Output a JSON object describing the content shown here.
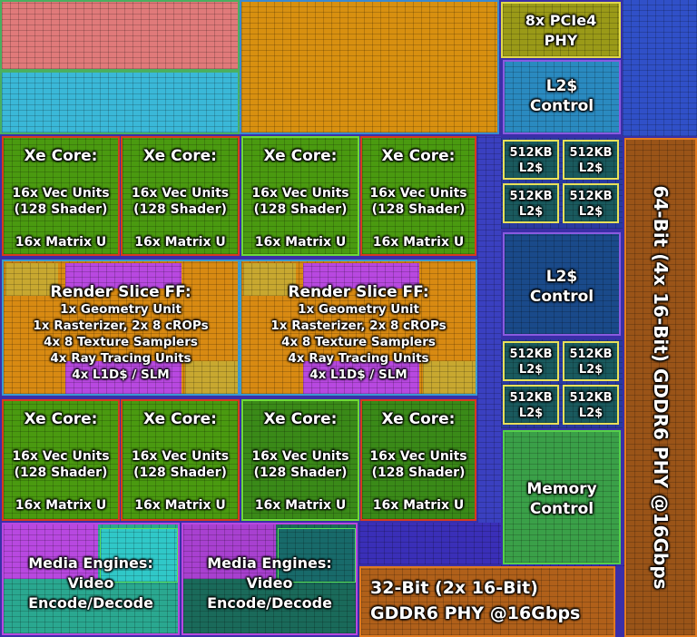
{
  "xe_cores": {
    "top": [
      {
        "title": "Xe Core:",
        "vec": "16x Vec Units",
        "shader": "(128 Shader)",
        "matrix": "16x Matrix U"
      },
      {
        "title": "Xe Core:",
        "vec": "16x Vec Units",
        "shader": "(128 Shader)",
        "matrix": "16x Matrix U"
      },
      {
        "title": "Xe Core:",
        "vec": "16x Vec Units",
        "shader": "(128 Shader)",
        "matrix": "16x Matrix U"
      },
      {
        "title": "Xe Core:",
        "vec": "16x Vec Units",
        "shader": "(128 Shader)",
        "matrix": "16x Matrix U"
      }
    ],
    "bottom": [
      {
        "title": "Xe Core:",
        "vec": "16x Vec Units",
        "shader": "(128 Shader)",
        "matrix": "16x Matrix U"
      },
      {
        "title": "Xe Core:",
        "vec": "16x Vec Units",
        "shader": "(128 Shader)",
        "matrix": "16x Matrix U"
      },
      {
        "title": "Xe Core:",
        "vec": "16x Vec Units",
        "shader": "(128 Shader)",
        "matrix": "16x Matrix U"
      },
      {
        "title": "Xe Core:",
        "vec": "16x Vec Units",
        "shader": "(128 Shader)",
        "matrix": "16x Matrix U"
      }
    ]
  },
  "render_slices": [
    {
      "title": "Render Slice FF:",
      "lines": [
        "1x Geometry Unit",
        "1x Rasterizer, 2x 8 cROPs",
        "4x 8 Texture Samplers",
        "4x Ray Tracing Units",
        "4x L1D$ / SLM"
      ]
    },
    {
      "title": "Render Slice FF:",
      "lines": [
        "1x Geometry Unit",
        "1x Rasterizer, 2x 8 cROPs",
        "4x 8 Texture Samplers",
        "4x Ray Tracing Units",
        "4x L1D$ / SLM"
      ]
    }
  ],
  "media_engines": [
    {
      "lines": [
        "Media Engines:",
        "Video",
        "Encode/Decode"
      ]
    },
    {
      "lines": [
        "Media Engines:",
        "Video",
        "Encode/Decode"
      ]
    }
  ],
  "pcie": {
    "lines": [
      "8x PCIe4",
      "PHY"
    ]
  },
  "l2_controls": [
    {
      "lines": [
        "L2$",
        "Control"
      ]
    },
    {
      "lines": [
        "L2$",
        "Control"
      ]
    }
  ],
  "l2_caches": {
    "group1": [
      {
        "size": "512KB",
        "label": "L2$"
      },
      {
        "size": "512KB",
        "label": "L2$"
      },
      {
        "size": "512KB",
        "label": "L2$"
      },
      {
        "size": "512KB",
        "label": "L2$"
      }
    ],
    "group2": [
      {
        "size": "512KB",
        "label": "L2$"
      },
      {
        "size": "512KB",
        "label": "L2$"
      },
      {
        "size": "512KB",
        "label": "L2$"
      },
      {
        "size": "512KB",
        "label": "L2$"
      }
    ]
  },
  "memory_control": {
    "lines": [
      "Memory",
      "Control"
    ]
  },
  "gddr6_bottom": {
    "lines": [
      "32-Bit (2x 16-Bit)",
      "GDDR6 PHY @16Gbps"
    ]
  },
  "gddr6_side": {
    "label": "64-Bit (4x 16-Bit) GDDR6 PHY @16Gbps"
  },
  "colors": {
    "xe_core": "#4a9a10",
    "render_slice": "#d88a12",
    "media": "#2aa890",
    "pcie": "#9a9a18",
    "l2_control": "#2a8ac0",
    "cache": "#1a5a5e",
    "memory_control": "#3aa048",
    "gddr6": "#b0601a",
    "die_background": "#3a2fa8"
  }
}
